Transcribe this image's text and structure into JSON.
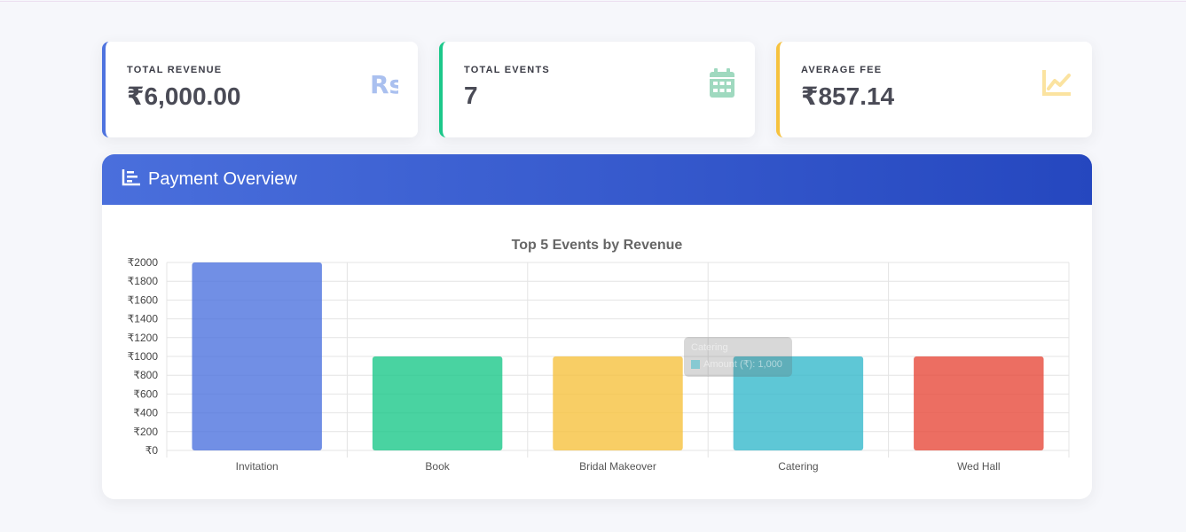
{
  "cards": [
    {
      "label": "TOTAL REVENUE",
      "value": "₹6,000.00",
      "icon": "rupee-icon",
      "color": "#4e73df"
    },
    {
      "label": "TOTAL EVENTS",
      "value": "7",
      "icon": "calendar-icon",
      "color": "#1cc88a"
    },
    {
      "label": "AVERAGE FEE",
      "value": "₹857.14",
      "icon": "chart-line-icon",
      "color": "#f6c23e"
    }
  ],
  "card_icon_text": "Rs",
  "panel": {
    "title": "Payment Overview",
    "icon": "chart-bar-icon"
  },
  "tooltip": {
    "title": "Catering",
    "label": "Amount (₹): 1,000"
  },
  "chart_data": {
    "type": "bar",
    "title": "Top 5 Events by Revenue",
    "categories": [
      "Invitation",
      "Book",
      "Bridal Makeover",
      "Catering",
      "Wed Hall"
    ],
    "series": [
      {
        "values": [
          2000,
          1000,
          1000,
          1000,
          1000
        ]
      }
    ],
    "colors": [
      "#4e73df",
      "#1cc88a",
      "#f6c23e",
      "#36b9cc",
      "#e74a3b"
    ],
    "ylim": [
      0,
      2000
    ],
    "ytick_step": 200,
    "ytick_prefix": "₹",
    "grid": true,
    "legend": "none"
  }
}
